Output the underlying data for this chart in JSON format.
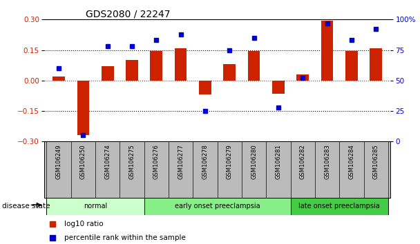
{
  "title": "GDS2080 / 22247",
  "samples": [
    "GSM106249",
    "GSM106250",
    "GSM106274",
    "GSM106275",
    "GSM106276",
    "GSM106277",
    "GSM106278",
    "GSM106279",
    "GSM106280",
    "GSM106281",
    "GSM106282",
    "GSM106283",
    "GSM106284",
    "GSM106285"
  ],
  "log10_ratio": [
    0.02,
    -0.27,
    0.07,
    0.1,
    0.145,
    0.16,
    -0.07,
    0.08,
    0.145,
    -0.065,
    0.03,
    0.295,
    0.145,
    0.16
  ],
  "percentile_rank": [
    60,
    5,
    78,
    78,
    83,
    88,
    25,
    75,
    85,
    28,
    52,
    97,
    83,
    92
  ],
  "ylim_left": [
    -0.3,
    0.3
  ],
  "ylim_right": [
    0,
    100
  ],
  "yticks_left": [
    -0.3,
    -0.15,
    0.0,
    0.15,
    0.3
  ],
  "yticks_right": [
    0,
    25,
    50,
    75,
    100
  ],
  "bar_color": "#CC2200",
  "dot_color": "#0000CC",
  "groups": [
    {
      "label": "normal",
      "start": 0,
      "end": 3
    },
    {
      "label": "early onset preeclampsia",
      "start": 4,
      "end": 9
    },
    {
      "label": "late onset preeclampsia",
      "start": 10,
      "end": 13
    }
  ],
  "group_colors": [
    "#CCFFCC",
    "#88EE88",
    "#44CC44"
  ],
  "disease_state_label": "disease state",
  "legend_items": [
    {
      "label": "log10 ratio",
      "color": "#CC2200"
    },
    {
      "label": "percentile rank within the sample",
      "color": "#0000CC"
    }
  ],
  "background_color": "#FFFFFF",
  "tick_area_color": "#BBBBBB",
  "bar_width": 0.5
}
